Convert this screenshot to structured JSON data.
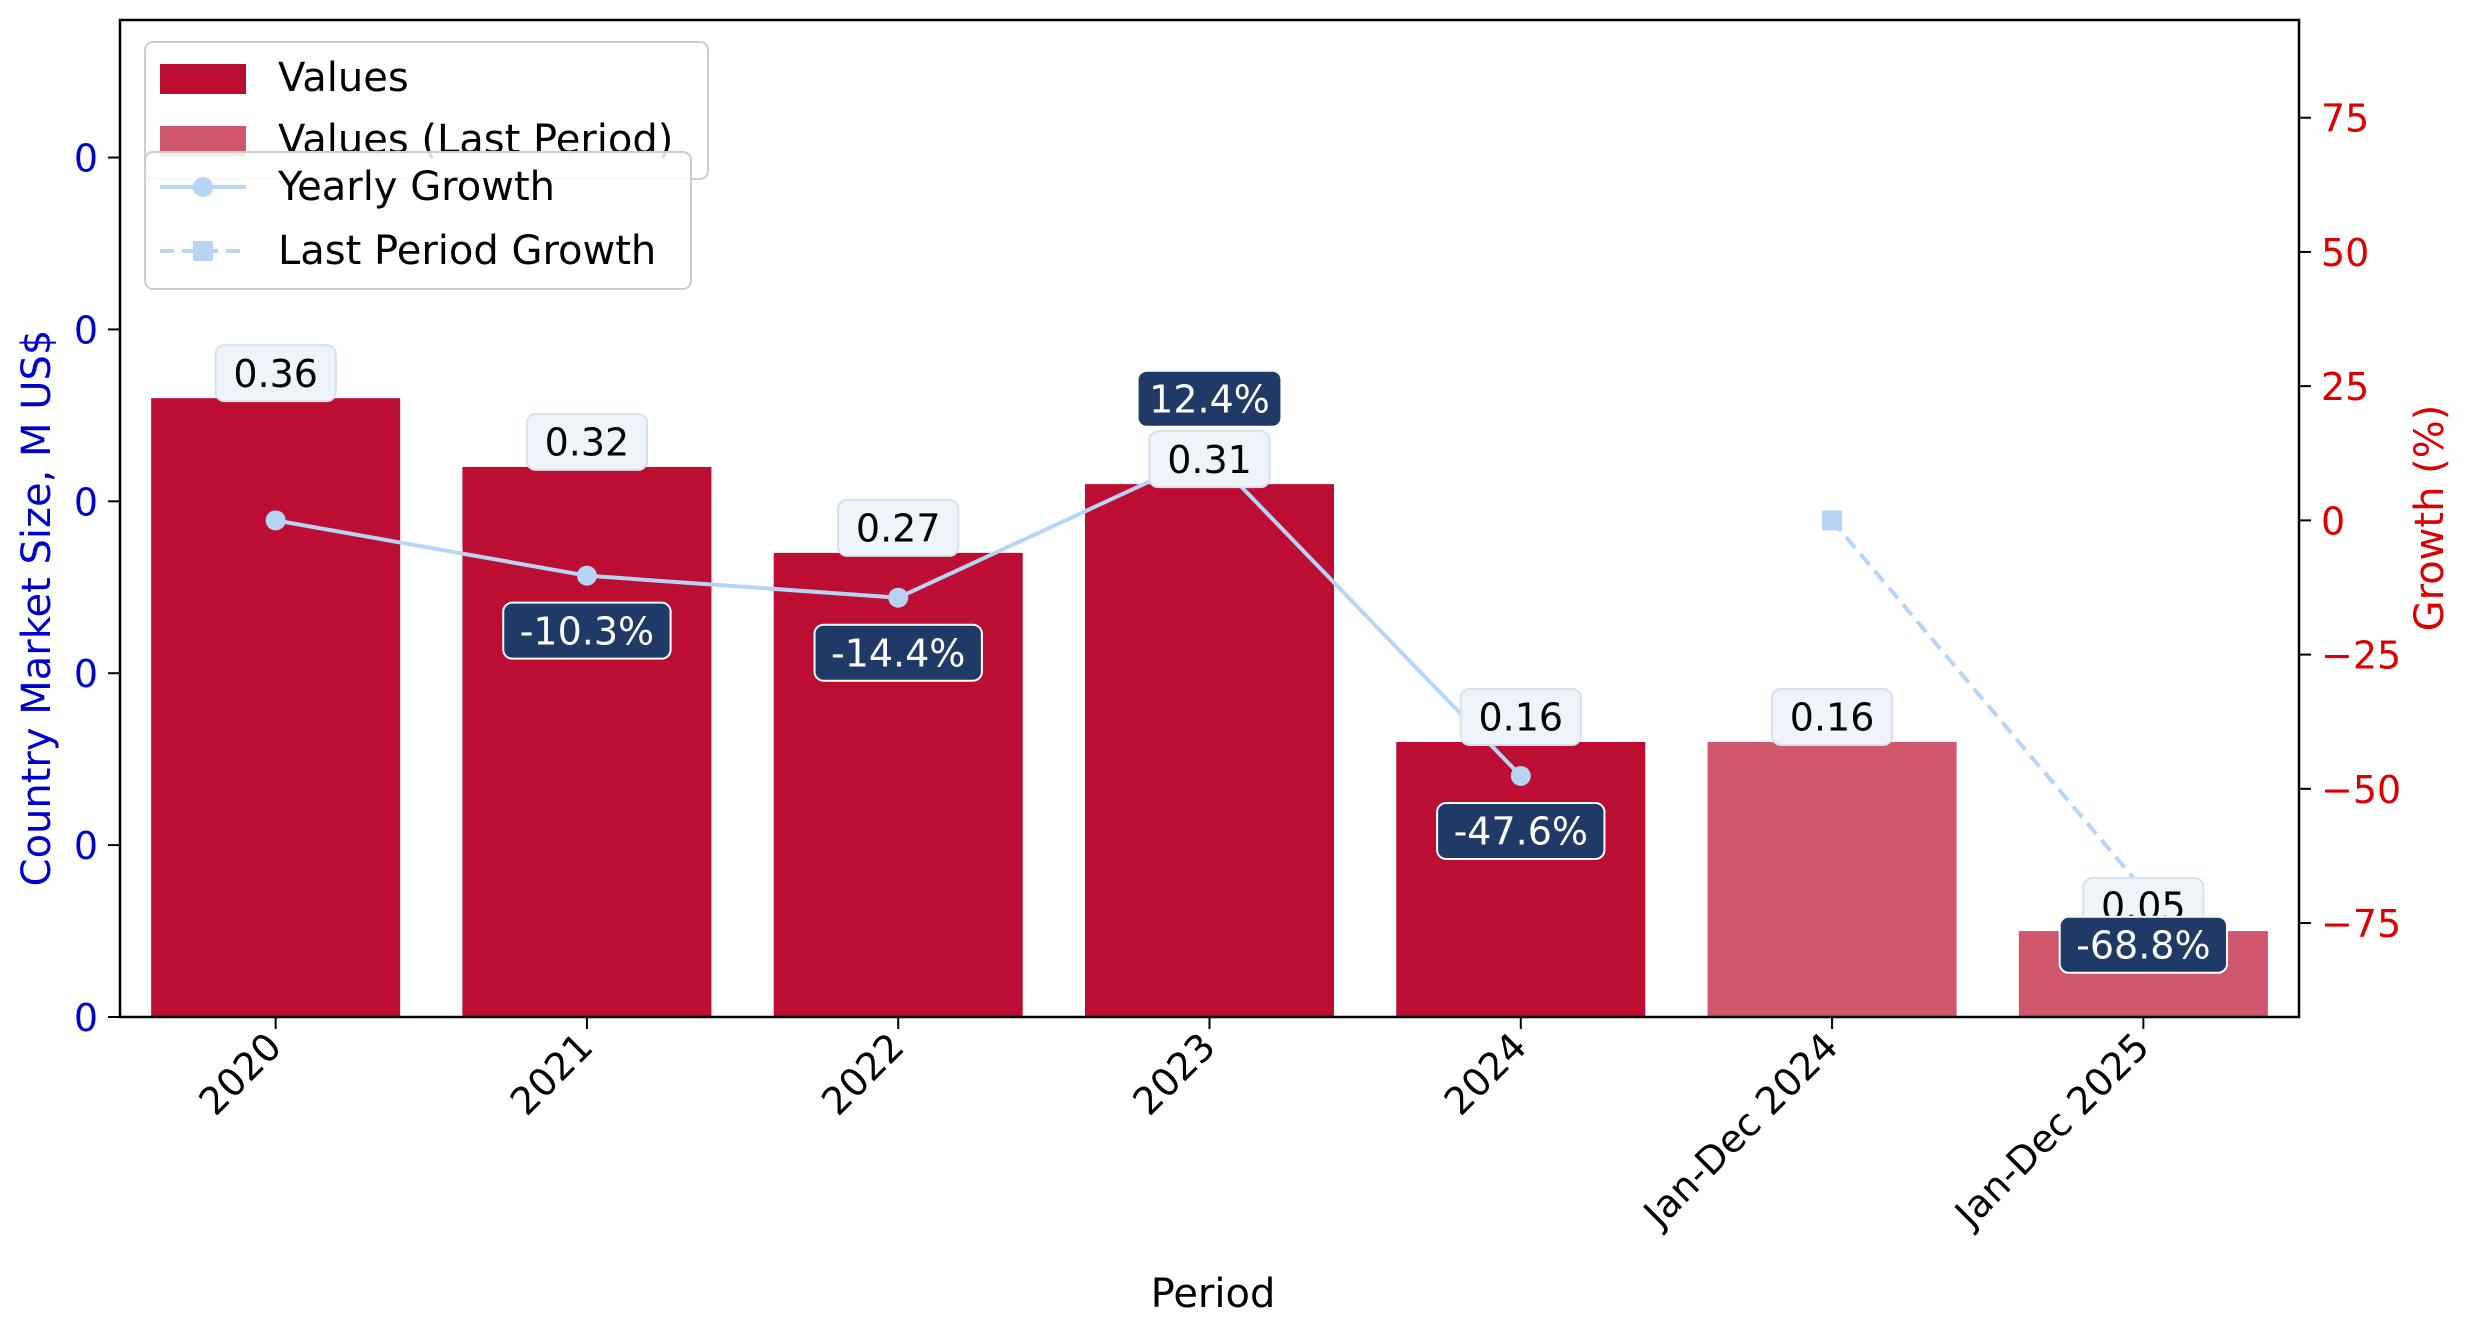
{
  "chart_data": {
    "type": "bar",
    "xlabel": "Period",
    "ylabel": "Country Market Size, M US$",
    "y2label": "Growth (%)",
    "categories": [
      "2020",
      "2021",
      "2022",
      "2023",
      "2024",
      "Jan-Dec 2024",
      "Jan-Dec 2025"
    ],
    "series": [
      {
        "name": "Values",
        "kind": "bar",
        "color": "#bc0d32",
        "values": [
          0.36,
          0.32,
          0.27,
          0.31,
          0.16,
          null,
          null
        ],
        "labels": [
          "0.36",
          "0.32",
          "0.27",
          "0.31",
          "0.16",
          "",
          ""
        ]
      },
      {
        "name": "Values (Last Period)",
        "kind": "bar",
        "color": "#d0566e",
        "values": [
          null,
          null,
          null,
          null,
          null,
          0.16,
          0.05
        ],
        "labels": [
          "",
          "",
          "",
          "",
          "",
          "0.16",
          "0.05"
        ]
      },
      {
        "name": "Yearly Growth",
        "kind": "line",
        "axis": "right",
        "color": "#b8d4f5",
        "values": [
          0,
          -10.3,
          -14.4,
          12.4,
          -47.6,
          null,
          null
        ],
        "labels": [
          "",
          "-10.3%",
          "-14.4%",
          "12.4%",
          "-47.6%",
          "",
          ""
        ]
      },
      {
        "name": "Last Period Growth",
        "kind": "line",
        "axis": "right",
        "dashed": true,
        "color": "#b8d4f5",
        "values": [
          null,
          null,
          null,
          null,
          null,
          0,
          -68.8
        ],
        "labels": [
          "",
          "",
          "",
          "",
          "",
          "",
          "-68.8%"
        ]
      }
    ],
    "y_left": {
      "lim": [
        0,
        0.58
      ],
      "ticks": [
        0,
        0.1,
        0.2,
        0.3,
        0.4,
        0.5
      ],
      "tick_labels": [
        "0",
        "0",
        "0",
        "0",
        "0",
        "0"
      ],
      "color": "#0000cc"
    },
    "y_right": {
      "lim": [
        -92.5,
        93.2
      ],
      "ticks": [
        -75,
        -50,
        -25,
        0,
        25,
        50,
        75
      ],
      "tick_labels": [
        "−75",
        "−50",
        "−25",
        "0",
        "25",
        "50",
        "75"
      ],
      "color": "#dd0000"
    },
    "legend_bars": {
      "placement": "top-left",
      "entries": [
        "Values",
        "Values (Last Period)"
      ]
    },
    "legend_lines": {
      "placement": "top-left",
      "entries": [
        "Yearly Growth",
        "Last Period Growth"
      ]
    },
    "grid": false,
    "label_box_color": "#eef4fa",
    "growth_box_color": "#1f3a66"
  }
}
